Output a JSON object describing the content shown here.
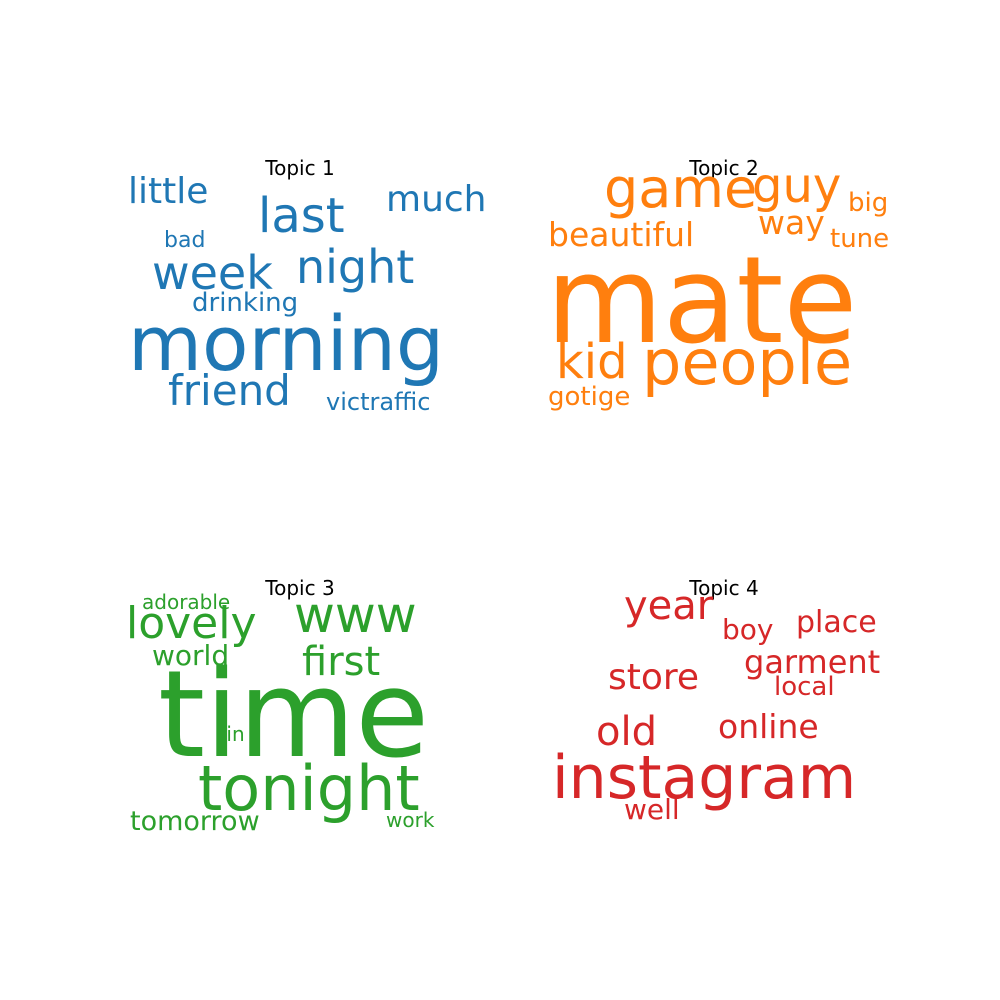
{
  "topics": [
    {
      "title": "Topic 1",
      "color": "#1f77b4",
      "words": [
        "little",
        "last",
        "much",
        "bad",
        "week",
        "night",
        "drinking",
        "morning",
        "friend",
        "victraffic"
      ]
    },
    {
      "title": "Topic 2",
      "color": "#ff7f0e",
      "words": [
        "game",
        "guy",
        "big",
        "beautiful",
        "way",
        "tune",
        "mate",
        "kid",
        "people",
        "gotige"
      ]
    },
    {
      "title": "Topic 3",
      "color": "#2ca02c",
      "words": [
        "adorable",
        "lovely",
        "www",
        "world",
        "first",
        "time",
        "sin",
        "tonight",
        "tomorrow",
        "work"
      ]
    },
    {
      "title": "Topic 4",
      "color": "#d62728",
      "words": [
        "year",
        "boy",
        "place",
        "store",
        "garment",
        "local",
        "old",
        "online",
        "instagram",
        "well"
      ]
    }
  ]
}
